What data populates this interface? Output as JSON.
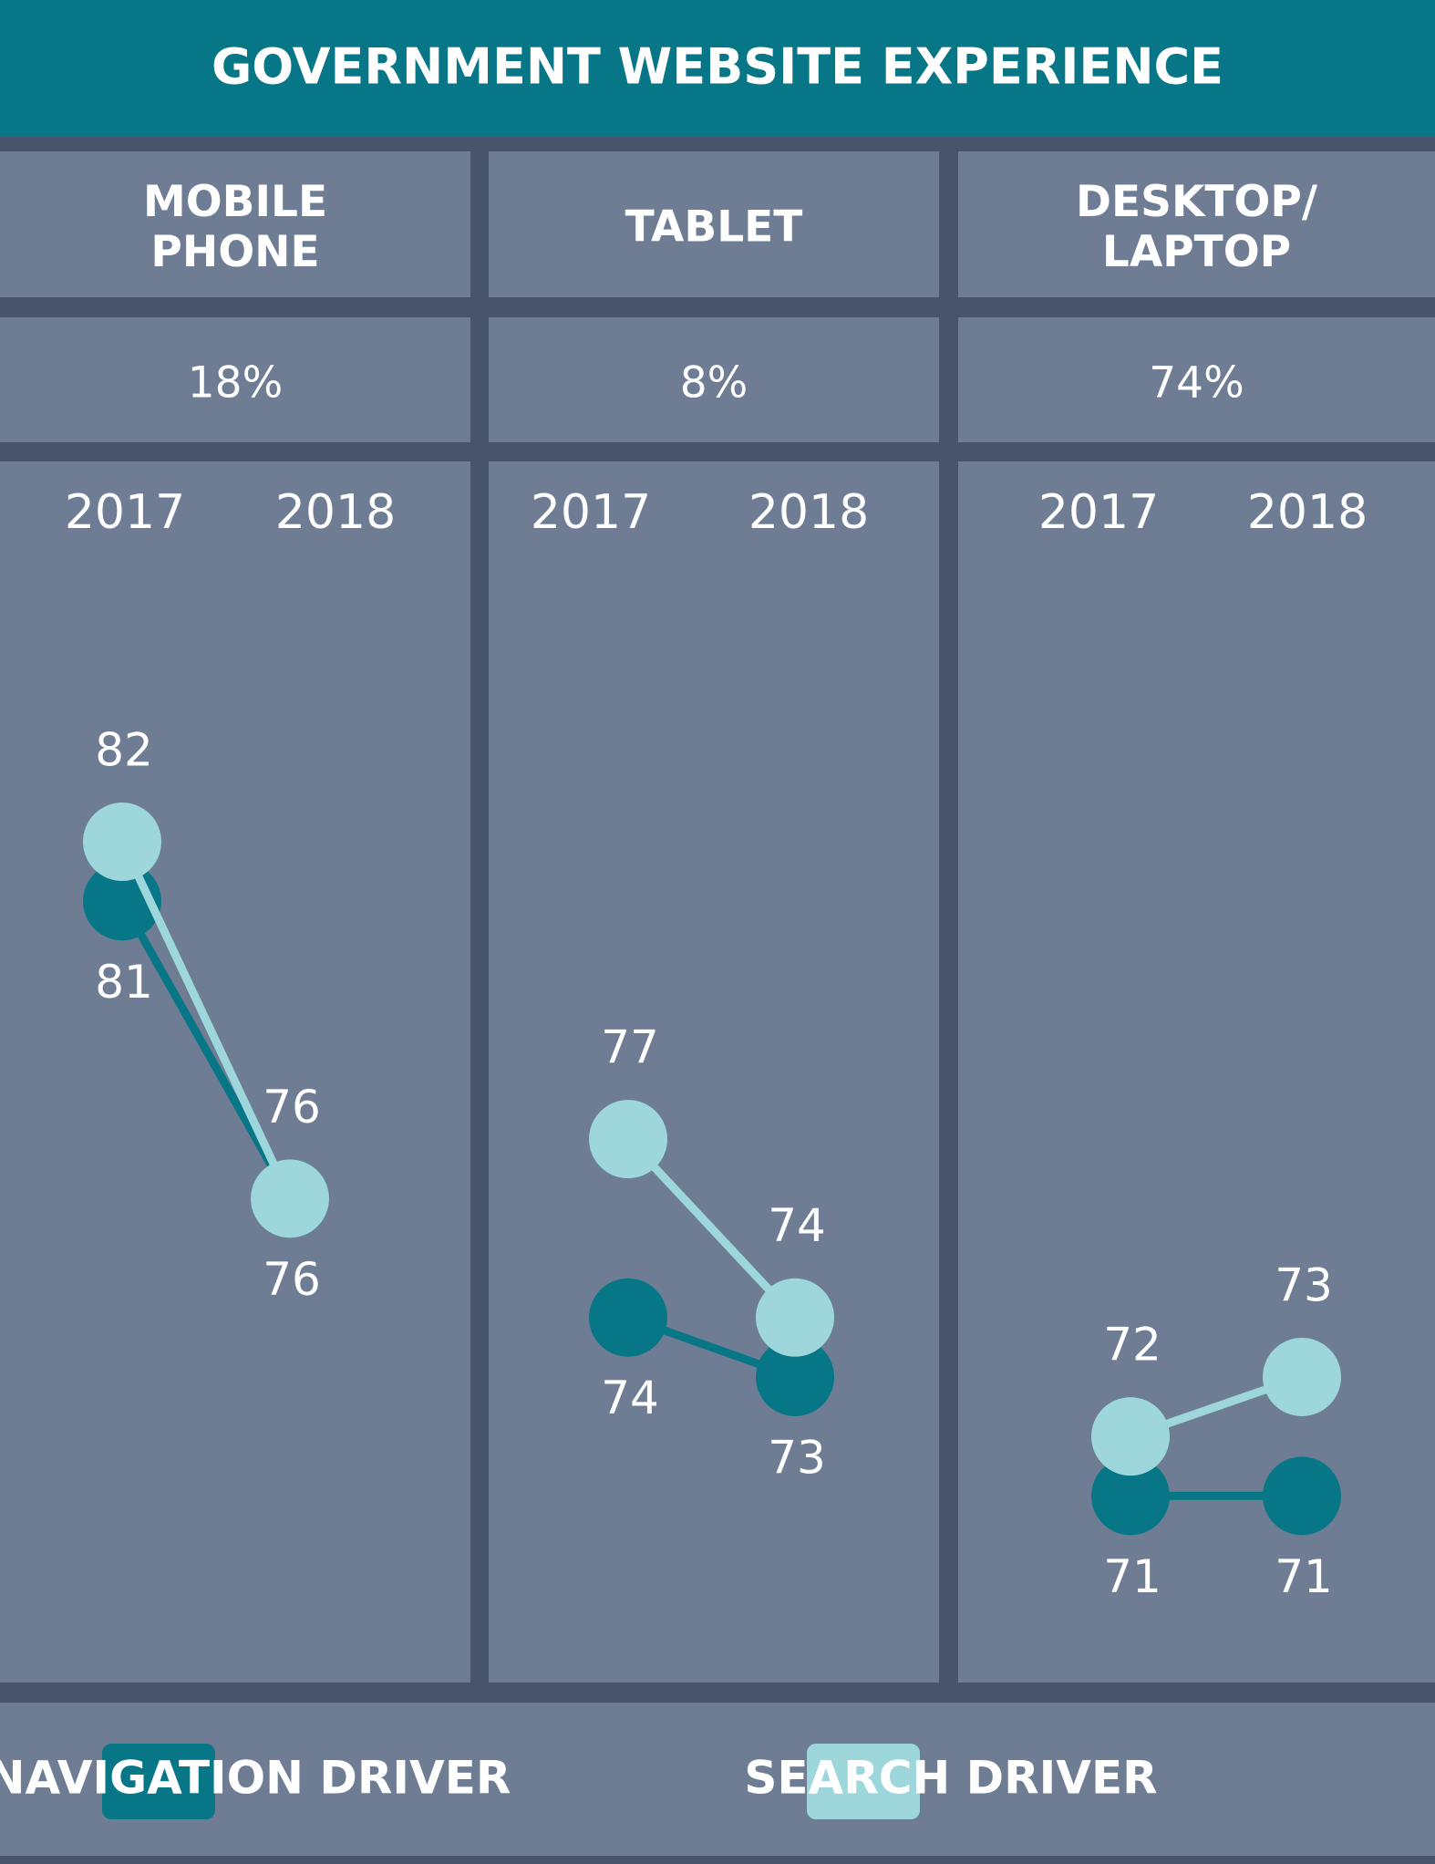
{
  "header": {
    "title": "GOVERNMENT WEBSITE EXPERIENCE"
  },
  "chart_data": [
    {
      "type": "line",
      "title": [
        "MOBILE",
        "PHONE"
      ],
      "subtitle": "18%",
      "categories": [
        "2017",
        "2018"
      ],
      "ylim": [
        68,
        87
      ],
      "series": [
        {
          "name": "NAVIGATION DRIVER",
          "color": "#077787",
          "values": [
            81,
            76
          ]
        },
        {
          "name": "SEARCH DRIVER",
          "color": "#9dd6db",
          "values": [
            82,
            76
          ]
        }
      ]
    },
    {
      "type": "line",
      "title": [
        "TABLET"
      ],
      "subtitle": "8%",
      "categories": [
        "2017",
        "2018"
      ],
      "ylim": [
        68,
        87
      ],
      "series": [
        {
          "name": "NAVIGATION DRIVER",
          "color": "#077787",
          "values": [
            74,
            73
          ]
        },
        {
          "name": "SEARCH DRIVER",
          "color": "#9dd6db",
          "values": [
            77,
            74
          ]
        }
      ]
    },
    {
      "type": "line",
      "title": [
        "DESKTOP/",
        "LAPTOP"
      ],
      "subtitle": "74%",
      "categories": [
        "2017",
        "2018"
      ],
      "ylim": [
        68,
        87
      ],
      "series": [
        {
          "name": "NAVIGATION DRIVER",
          "color": "#077787",
          "values": [
            71,
            71
          ]
        },
        {
          "name": "SEARCH DRIVER",
          "color": "#9dd6db",
          "values": [
            72,
            73
          ]
        }
      ]
    }
  ]
}
